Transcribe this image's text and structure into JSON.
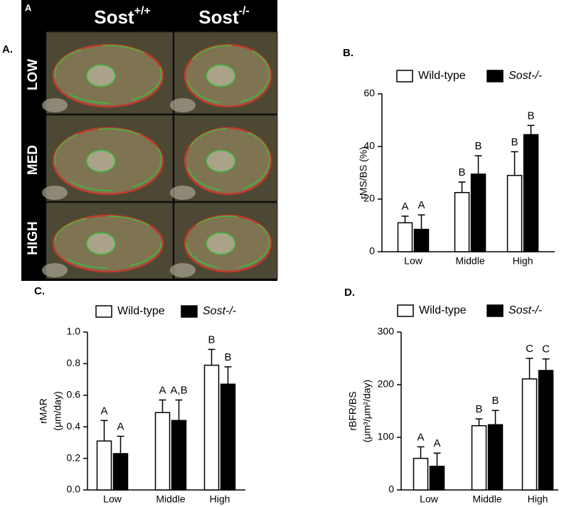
{
  "panel_a": {
    "label": "A.",
    "inner_label": "A",
    "columns": [
      {
        "base": "Sost",
        "sup": "+/+"
      },
      {
        "base": "Sost",
        "sup": "-/-"
      }
    ],
    "rows": [
      "LOW",
      "MED",
      "HIGH"
    ]
  },
  "chart_data": [
    {
      "type": "bar",
      "panel_label": "B.",
      "ylabel": [
        "rMS/BS (%)"
      ],
      "categories": [
        "Low",
        "Middle",
        "High"
      ],
      "series": [
        {
          "name": "Wild-type",
          "color": "#ffffff",
          "values": [
            11,
            22.5,
            29
          ],
          "errors": [
            2.5,
            4,
            9
          ],
          "significance_labels": [
            "A",
            "B",
            "B"
          ]
        },
        {
          "name": "Sost-/-",
          "color": "#000000",
          "values": [
            8.5,
            29.5,
            44.5
          ],
          "errors": [
            5.5,
            7,
            3.5
          ],
          "significance_labels": [
            "A",
            "B",
            "B"
          ]
        }
      ],
      "ylim": [
        0,
        60
      ],
      "yticks": [
        0,
        20,
        40,
        60
      ]
    },
    {
      "type": "bar",
      "panel_label": "C.",
      "ylabel": [
        "rMAR",
        "(μm/day)"
      ],
      "categories": [
        "Low",
        "Middle",
        "High"
      ],
      "series": [
        {
          "name": "Wild-type",
          "color": "#ffffff",
          "values": [
            0.31,
            0.49,
            0.79
          ],
          "errors": [
            0.13,
            0.08,
            0.1
          ],
          "significance_labels": [
            "A",
            "A",
            "B"
          ]
        },
        {
          "name": "Sost-/-",
          "color": "#000000",
          "values": [
            0.23,
            0.44,
            0.67
          ],
          "errors": [
            0.11,
            0.13,
            0.11
          ],
          "significance_labels": [
            "A",
            "A,B",
            "B"
          ]
        }
      ],
      "ylim": [
        0,
        1
      ],
      "yticks": [
        {
          "value": 0,
          "label": "0.0"
        },
        0.2,
        0.4,
        0.6,
        0.8,
        {
          "value": 1,
          "label": "1.0"
        }
      ]
    },
    {
      "type": "bar",
      "panel_label": "D.",
      "ylabel": [
        "rBFR/BS",
        "(μm³/μm²/day)"
      ],
      "categories": [
        "Low",
        "Middle",
        "High"
      ],
      "series": [
        {
          "name": "Wild-type",
          "color": "#ffffff",
          "values": [
            60,
            122,
            211
          ],
          "errors": [
            22,
            13,
            39
          ],
          "significance_labels": [
            "A",
            "B",
            "C"
          ]
        },
        {
          "name": "Sost-/-",
          "color": "#000000",
          "values": [
            45,
            124,
            227
          ],
          "errors": [
            25,
            27,
            22
          ],
          "significance_labels": [
            "A",
            "B",
            "C"
          ]
        }
      ],
      "ylim": [
        0,
        300
      ],
      "yticks": [
        0,
        100,
        200,
        300
      ]
    }
  ]
}
